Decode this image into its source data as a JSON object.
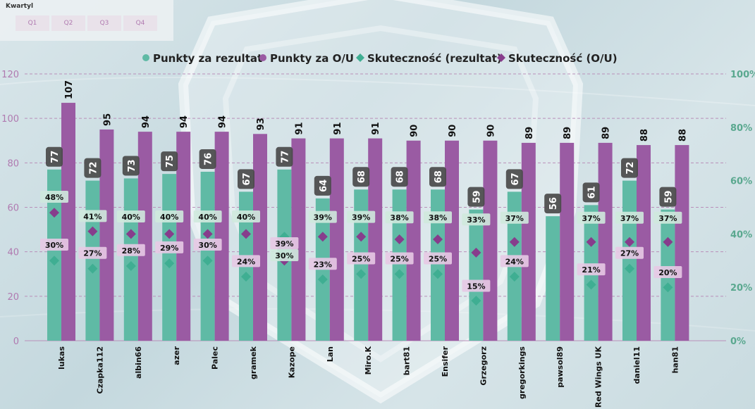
{
  "slicer": {
    "title": "Kwartyl",
    "options": [
      "Q1",
      "Q2",
      "Q3",
      "Q4"
    ]
  },
  "colors": {
    "rezultat": "#5fbaa5",
    "ou": "#9a5ba3",
    "skut_rez": "#3fae92",
    "skut_ou": "#873d8c",
    "pct_label_ou_bg": "#e7c9e4",
    "pct_label_rez_bg": "#cfe9dd",
    "value_label_bg": "#4a4a4a"
  },
  "chart_data": {
    "type": "bar",
    "categories": [
      "lukas",
      "Czapka112",
      "albin66",
      "azer",
      "Palec",
      "gramek",
      "Kazope",
      "Lan",
      "Miro.K",
      "bart81",
      "Ensifer",
      "Grzegorz",
      "gregorkings",
      "pawsol89",
      "Red Wings UK",
      "daniel11",
      "han81"
    ],
    "series": [
      {
        "name": "Punkty za rezultat",
        "type": "bar",
        "axis": "left",
        "values": [
          77,
          72,
          73,
          75,
          76,
          67,
          77,
          64,
          68,
          68,
          68,
          59,
          67,
          56,
          61,
          72,
          59
        ]
      },
      {
        "name": "Punkty za O/U",
        "type": "bar",
        "axis": "left",
        "values": [
          107,
          95,
          94,
          94,
          94,
          93,
          91,
          91,
          91,
          90,
          90,
          90,
          89,
          89,
          89,
          88,
          88
        ]
      },
      {
        "name": "Skuteczność (rezultat)",
        "type": "scatter",
        "axis": "right",
        "values": [
          30,
          27,
          28,
          29,
          30,
          24,
          39,
          23,
          25,
          25,
          25,
          15,
          24,
          null,
          21,
          27,
          20
        ]
      },
      {
        "name": "Skuteczność (O/U)",
        "type": "scatter",
        "axis": "right",
        "values": [
          48,
          41,
          40,
          40,
          40,
          40,
          30,
          39,
          39,
          38,
          38,
          33,
          37,
          null,
          37,
          37,
          37
        ]
      }
    ],
    "ylim": [
      0,
      120
    ],
    "yticks": [
      0,
      20,
      40,
      60,
      80,
      100,
      120
    ],
    "y2lim": [
      0,
      100
    ],
    "y2ticks": [
      "0%",
      "20%",
      "40%",
      "60%",
      "80%",
      "100%"
    ],
    "legend": "top-center",
    "grid": true
  }
}
